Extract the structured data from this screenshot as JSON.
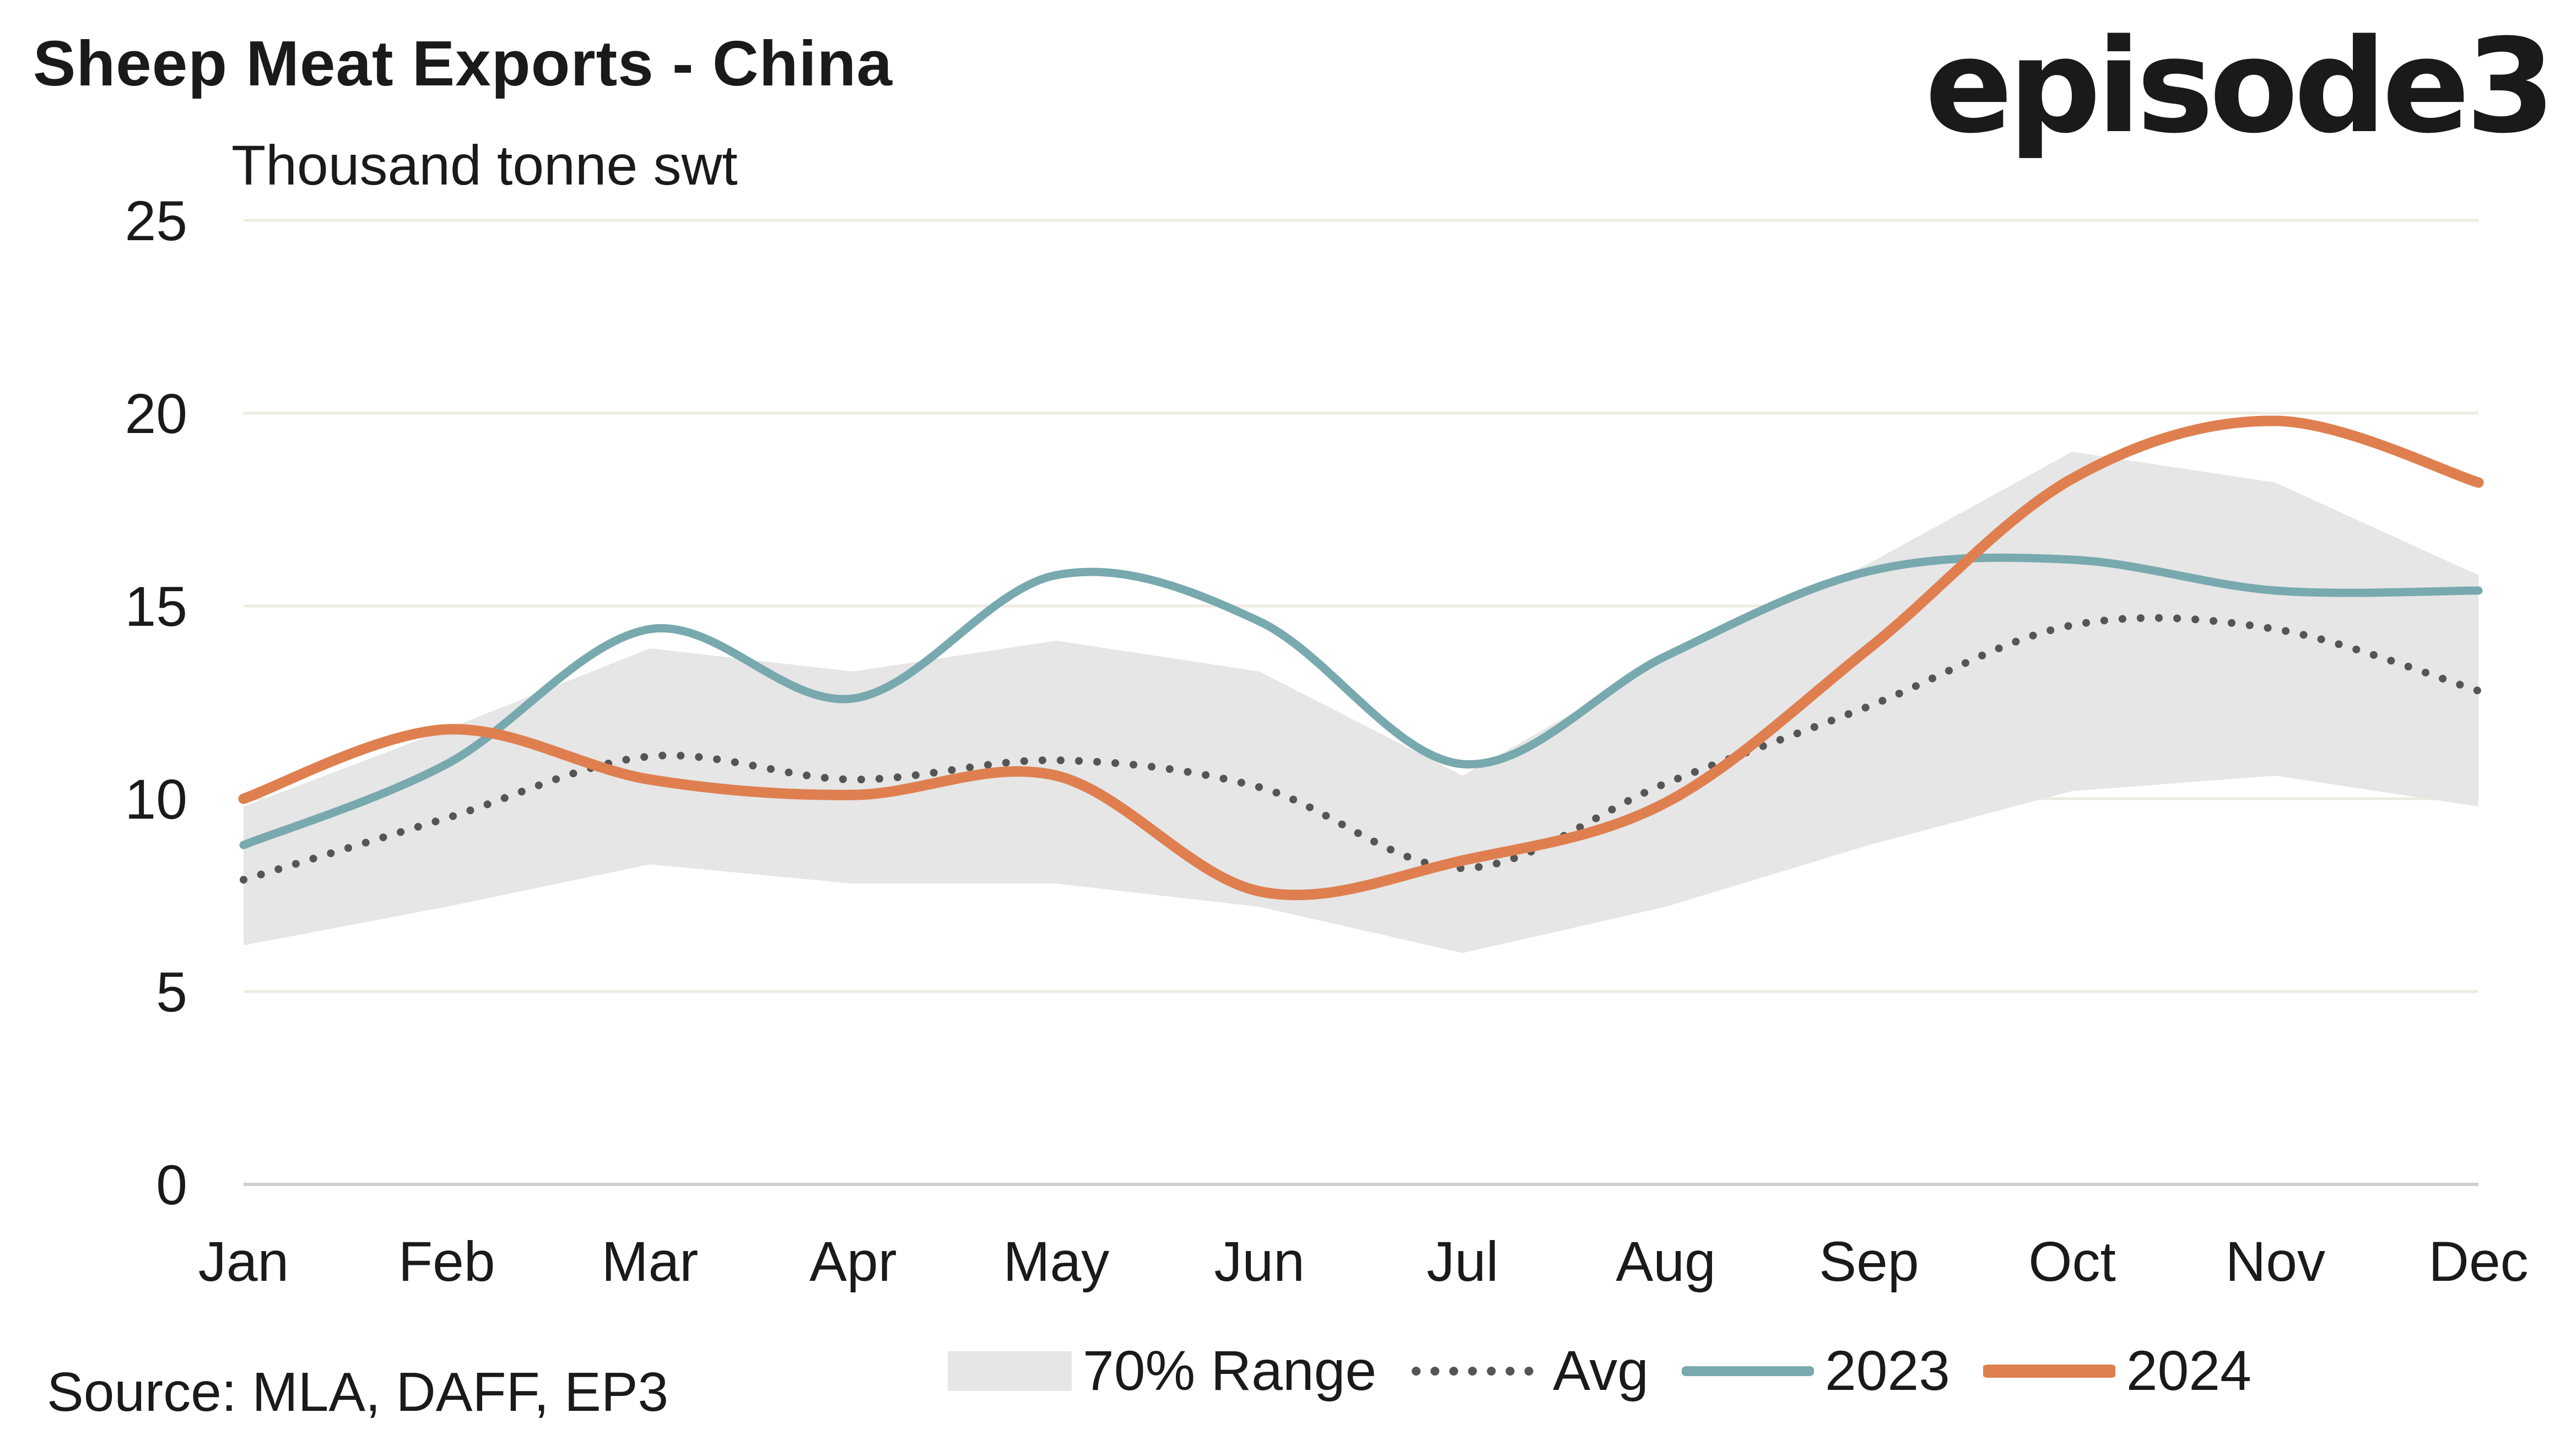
{
  "title": "Sheep Meat Exports - China",
  "brand": "episode3",
  "source": "Source: MLA, DAFF, EP3",
  "colors": {
    "range": "#e6e6e6",
    "avg": "#555555",
    "s2023": "#78a9ae",
    "s2024": "#df7f50",
    "grid": "#ecebe0",
    "axis": "#cfcfcf"
  },
  "legend": {
    "range": "70% Range",
    "avg": "Avg",
    "s2023": "2023",
    "s2024": "2024"
  },
  "chart_data": {
    "type": "line",
    "title": "Sheep Meat Exports - China",
    "ylabel": "Thousand tonne swt",
    "xlabel": "",
    "categories": [
      "Jan",
      "Feb",
      "Mar",
      "Apr",
      "May",
      "Jun",
      "Jul",
      "Aug",
      "Sep",
      "Oct",
      "Nov",
      "Dec"
    ],
    "ylim": [
      0,
      25
    ],
    "yticks": [
      0,
      5,
      10,
      15,
      20,
      25
    ],
    "grid": true,
    "legend_position": "bottom",
    "band": {
      "name": "70% Range",
      "low": [
        6.2,
        7.2,
        8.3,
        7.8,
        7.8,
        7.2,
        6.0,
        7.2,
        8.8,
        10.2,
        10.6,
        9.8
      ],
      "high": [
        9.8,
        11.8,
        13.9,
        13.3,
        14.1,
        13.3,
        10.6,
        13.6,
        16.1,
        19.0,
        18.2,
        15.8
      ]
    },
    "series": [
      {
        "name": "Avg",
        "style": "dotted",
        "values": [
          7.9,
          9.5,
          11.1,
          10.5,
          11.0,
          10.3,
          8.2,
          10.4,
          12.4,
          14.5,
          14.4,
          12.8
        ]
      },
      {
        "name": "2023",
        "style": "solid",
        "values": [
          8.8,
          10.9,
          14.4,
          12.6,
          15.8,
          14.6,
          10.9,
          13.7,
          15.9,
          16.2,
          15.4,
          15.4
        ]
      },
      {
        "name": "2024",
        "style": "solid",
        "values": [
          10.0,
          11.8,
          10.5,
          10.1,
          10.6,
          7.6,
          8.4,
          9.9,
          13.9,
          18.3,
          19.8,
          18.2
        ]
      }
    ]
  }
}
